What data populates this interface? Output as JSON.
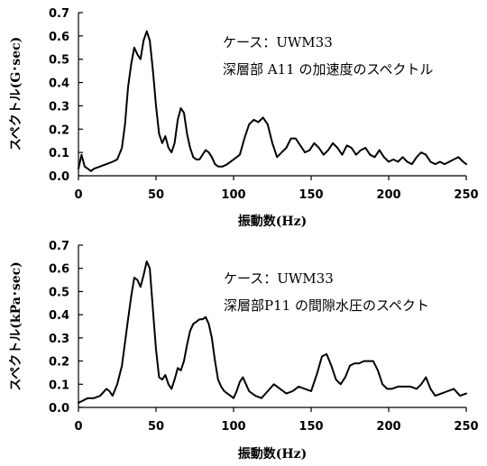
{
  "chart_data": [
    {
      "type": "line",
      "annotation": [
        "ケース：UWM33",
        "深層部 A11 の加速度のスペクトル"
      ],
      "xlabel": "振動数(Hz)",
      "ylabel": "スペクトル(G･sec)",
      "xlim": [
        0,
        250
      ],
      "ylim": [
        0,
        0.7
      ],
      "xticks": [
        "0",
        "50",
        "100",
        "150",
        "200",
        "250"
      ],
      "yticks": [
        "0.0",
        "0.1",
        "0.2",
        "0.3",
        "0.4",
        "0.5",
        "0.6",
        "0.7"
      ],
      "grid": false,
      "series": [
        {
          "x": [
            0,
            2,
            4,
            6,
            8,
            10,
            14,
            18,
            22,
            25,
            28,
            30,
            32,
            34,
            36,
            38,
            40,
            42,
            44,
            46,
            48,
            50,
            52,
            54,
            56,
            58,
            60,
            62,
            64,
            66,
            68,
            70,
            72,
            74,
            76,
            78,
            80,
            82,
            84,
            86,
            88,
            90,
            93,
            96,
            100,
            104,
            107,
            110,
            113,
            116,
            119,
            122,
            125,
            128,
            131,
            134,
            137,
            140,
            143,
            146,
            149,
            152,
            155,
            158,
            161,
            164,
            167,
            170,
            173,
            176,
            179,
            182,
            185,
            188,
            191,
            194,
            197,
            200,
            203,
            206,
            209,
            212,
            215,
            218,
            221,
            224,
            227,
            230,
            233,
            236,
            239,
            242,
            245,
            248,
            250
          ],
          "y": [
            0.03,
            0.09,
            0.04,
            0.03,
            0.02,
            0.03,
            0.04,
            0.05,
            0.06,
            0.07,
            0.12,
            0.22,
            0.38,
            0.48,
            0.55,
            0.52,
            0.5,
            0.58,
            0.62,
            0.58,
            0.45,
            0.3,
            0.18,
            0.14,
            0.17,
            0.12,
            0.1,
            0.14,
            0.24,
            0.29,
            0.27,
            0.18,
            0.12,
            0.08,
            0.07,
            0.07,
            0.09,
            0.11,
            0.1,
            0.08,
            0.05,
            0.04,
            0.04,
            0.05,
            0.07,
            0.09,
            0.16,
            0.22,
            0.24,
            0.23,
            0.25,
            0.22,
            0.14,
            0.08,
            0.1,
            0.12,
            0.16,
            0.16,
            0.13,
            0.1,
            0.11,
            0.14,
            0.12,
            0.09,
            0.11,
            0.14,
            0.12,
            0.09,
            0.13,
            0.12,
            0.09,
            0.11,
            0.12,
            0.09,
            0.08,
            0.11,
            0.08,
            0.06,
            0.07,
            0.06,
            0.08,
            0.06,
            0.05,
            0.08,
            0.1,
            0.09,
            0.06,
            0.05,
            0.06,
            0.05,
            0.06,
            0.07,
            0.08,
            0.06,
            0.05
          ]
        }
      ]
    },
    {
      "type": "line",
      "annotation": [
        "ケース：UWM33",
        "深層部P11 の間隙水圧のスペクト"
      ],
      "xlabel": "振動数(Hz)",
      "ylabel": "スペクトル(kPa･sec)",
      "xlim": [
        0,
        250
      ],
      "ylim": [
        0,
        0.7
      ],
      "xticks": [
        "0",
        "50",
        "100",
        "150",
        "200",
        "250"
      ],
      "yticks": [
        "0.0",
        "0.1",
        "0.2",
        "0.3",
        "0.4",
        "0.5",
        "0.6",
        "0.7"
      ],
      "grid": false,
      "series": [
        {
          "x": [
            0,
            3,
            6,
            10,
            14,
            18,
            20,
            22,
            25,
            28,
            30,
            32,
            34,
            36,
            38,
            40,
            42,
            44,
            46,
            48,
            50,
            52,
            54,
            56,
            58,
            60,
            62,
            64,
            66,
            68,
            70,
            72,
            74,
            76,
            78,
            80,
            82,
            84,
            86,
            88,
            90,
            92,
            94,
            96,
            98,
            100,
            102,
            104,
            106,
            108,
            110,
            114,
            118,
            122,
            126,
            130,
            134,
            138,
            142,
            146,
            150,
            154,
            157,
            160,
            163,
            166,
            169,
            172,
            175,
            178,
            181,
            184,
            187,
            190,
            193,
            196,
            199,
            202,
            206,
            210,
            214,
            218,
            221,
            224,
            227,
            230,
            234,
            238,
            242,
            246,
            250
          ],
          "y": [
            0.02,
            0.03,
            0.04,
            0.04,
            0.05,
            0.08,
            0.07,
            0.05,
            0.1,
            0.18,
            0.28,
            0.38,
            0.48,
            0.56,
            0.55,
            0.52,
            0.57,
            0.63,
            0.6,
            0.42,
            0.25,
            0.13,
            0.12,
            0.14,
            0.1,
            0.08,
            0.12,
            0.17,
            0.16,
            0.2,
            0.27,
            0.33,
            0.36,
            0.37,
            0.38,
            0.38,
            0.39,
            0.36,
            0.3,
            0.2,
            0.12,
            0.09,
            0.07,
            0.06,
            0.05,
            0.04,
            0.07,
            0.11,
            0.13,
            0.1,
            0.07,
            0.05,
            0.04,
            0.07,
            0.1,
            0.08,
            0.06,
            0.07,
            0.09,
            0.08,
            0.07,
            0.15,
            0.22,
            0.23,
            0.18,
            0.12,
            0.1,
            0.13,
            0.18,
            0.19,
            0.19,
            0.2,
            0.2,
            0.2,
            0.16,
            0.1,
            0.08,
            0.08,
            0.09,
            0.09,
            0.09,
            0.08,
            0.1,
            0.13,
            0.08,
            0.05,
            0.06,
            0.07,
            0.08,
            0.05,
            0.06
          ]
        }
      ]
    }
  ]
}
